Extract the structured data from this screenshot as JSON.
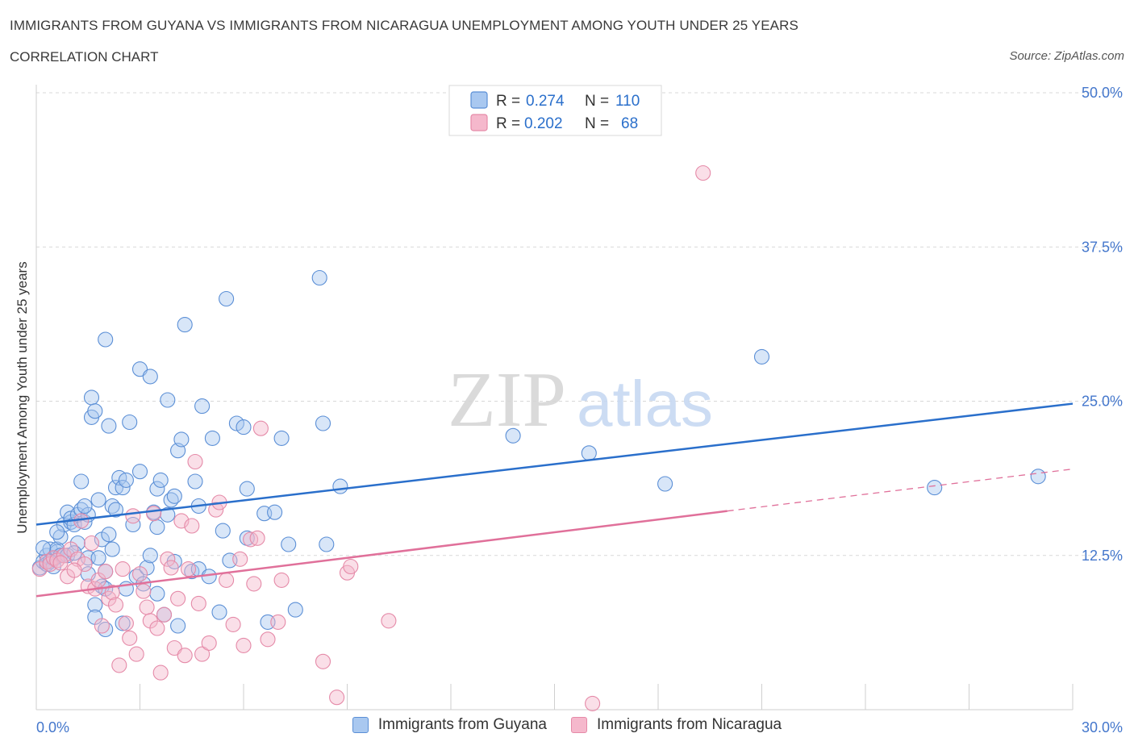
{
  "header": {
    "title": "IMMIGRANTS FROM GUYANA VS IMMIGRANTS FROM NICARAGUA UNEMPLOYMENT AMONG YOUTH UNDER 25 YEARS",
    "subtitle": "CORRELATION CHART",
    "source": "Source: ZipAtlas.com"
  },
  "watermark": {
    "zip": "ZIP",
    "atlas": "atlas"
  },
  "colors": {
    "guyana_fill": "#a9c8f0",
    "guyana_stroke": "#5b8fd6",
    "guyana_line": "#2a6fcb",
    "nicaragua_fill": "#f5b8cc",
    "nicaragua_stroke": "#e58aa8",
    "nicaragua_line": "#e0709a",
    "axis_label": "#4477cc",
    "grid": "#d8d8d8"
  },
  "legend": {
    "rows": [
      {
        "r_label": "R = ",
        "r_value": "0.274",
        "n_label": "N = ",
        "n_value": "110"
      },
      {
        "r_label": "R = ",
        "r_value": "0.202",
        "n_label": "N = ",
        "n_value": "68"
      }
    ]
  },
  "chart_data": {
    "type": "scatter",
    "xlabel": "",
    "ylabel": "Unemployment Among Youth under 25 years",
    "xlim": [
      0,
      30
    ],
    "ylim": [
      0,
      50
    ],
    "x_tick_labels": [
      "0.0%",
      "30.0%"
    ],
    "y_ticks": [
      12.5,
      25,
      37.5,
      50
    ],
    "y_tick_labels": [
      "12.5%",
      "25.0%",
      "37.5%",
      "50.0%"
    ],
    "grid": true,
    "legend_position": "top-center",
    "series": [
      {
        "name": "Immigrants from Guyana",
        "r": 0.274,
        "n": 110,
        "trend": {
          "x": [
            0,
            30
          ],
          "y": [
            15.0,
            24.8
          ]
        },
        "points": [
          [
            0.1,
            11.5
          ],
          [
            0.2,
            12.0
          ],
          [
            0.3,
            12.5
          ],
          [
            0.3,
            11.8
          ],
          [
            0.4,
            13.0
          ],
          [
            0.5,
            12.2
          ],
          [
            0.6,
            12.8
          ],
          [
            0.6,
            13.0
          ],
          [
            0.7,
            14.0
          ],
          [
            0.7,
            12.5
          ],
          [
            0.8,
            15.0
          ],
          [
            0.8,
            12.5
          ],
          [
            0.9,
            16.0
          ],
          [
            1.0,
            15.2
          ],
          [
            1.0,
            15.5
          ],
          [
            1.1,
            15.0
          ],
          [
            1.2,
            15.8
          ],
          [
            1.2,
            13.5
          ],
          [
            1.3,
            18.5
          ],
          [
            1.3,
            16.2
          ],
          [
            1.4,
            15.2
          ],
          [
            1.5,
            15.8
          ],
          [
            1.5,
            12.3
          ],
          [
            1.5,
            11.0
          ],
          [
            1.6,
            25.3
          ],
          [
            1.6,
            23.7
          ],
          [
            1.7,
            8.5
          ],
          [
            1.7,
            7.5
          ],
          [
            1.7,
            24.2
          ],
          [
            1.8,
            17.0
          ],
          [
            1.8,
            12.3
          ],
          [
            1.9,
            13.8
          ],
          [
            1.9,
            10.0
          ],
          [
            2.0,
            6.5
          ],
          [
            2.0,
            9.8
          ],
          [
            2.0,
            11.2
          ],
          [
            2.0,
            30.0
          ],
          [
            2.1,
            14.2
          ],
          [
            2.1,
            23.0
          ],
          [
            2.2,
            16.5
          ],
          [
            2.3,
            18.0
          ],
          [
            2.3,
            16.2
          ],
          [
            2.4,
            18.8
          ],
          [
            2.5,
            18.0
          ],
          [
            2.5,
            7.0
          ],
          [
            2.6,
            9.8
          ],
          [
            2.6,
            18.6
          ],
          [
            2.7,
            23.3
          ],
          [
            2.8,
            15.0
          ],
          [
            2.9,
            10.8
          ],
          [
            3.0,
            19.3
          ],
          [
            3.0,
            27.6
          ],
          [
            3.2,
            11.5
          ],
          [
            3.3,
            12.5
          ],
          [
            3.3,
            27.0
          ],
          [
            3.4,
            16.0
          ],
          [
            3.5,
            9.4
          ],
          [
            3.5,
            14.8
          ],
          [
            3.5,
            17.9
          ],
          [
            3.6,
            18.6
          ],
          [
            3.7,
            7.7
          ],
          [
            3.8,
            25.1
          ],
          [
            3.8,
            15.8
          ],
          [
            3.9,
            17.0
          ],
          [
            4.0,
            17.3
          ],
          [
            4.0,
            12.0
          ],
          [
            4.1,
            21.0
          ],
          [
            4.1,
            6.8
          ],
          [
            4.2,
            21.9
          ],
          [
            4.3,
            31.2
          ],
          [
            4.5,
            11.2
          ],
          [
            4.6,
            18.5
          ],
          [
            4.7,
            16.5
          ],
          [
            4.7,
            11.4
          ],
          [
            4.8,
            24.6
          ],
          [
            5.0,
            10.8
          ],
          [
            5.1,
            22.0
          ],
          [
            5.3,
            7.9
          ],
          [
            5.4,
            14.5
          ],
          [
            5.5,
            33.3
          ],
          [
            5.6,
            12.1
          ],
          [
            5.8,
            23.2
          ],
          [
            6.0,
            22.9
          ],
          [
            6.1,
            13.9
          ],
          [
            6.1,
            17.9
          ],
          [
            6.6,
            15.9
          ],
          [
            6.7,
            7.1
          ],
          [
            6.9,
            16.0
          ],
          [
            7.1,
            22.0
          ],
          [
            7.3,
            13.4
          ],
          [
            7.5,
            8.1
          ],
          [
            8.2,
            35.0
          ],
          [
            8.3,
            23.2
          ],
          [
            8.4,
            13.4
          ],
          [
            8.8,
            18.1
          ],
          [
            13.8,
            22.2
          ],
          [
            16.0,
            20.8
          ],
          [
            18.2,
            18.3
          ],
          [
            21.0,
            28.6
          ],
          [
            26.0,
            18.0
          ],
          [
            29.0,
            18.9
          ],
          [
            0.2,
            13.1
          ],
          [
            0.4,
            12.0
          ],
          [
            0.5,
            11.6
          ],
          [
            0.9,
            12.5
          ],
          [
            1.1,
            12.7
          ],
          [
            0.6,
            14.4
          ],
          [
            1.4,
            16.5
          ],
          [
            2.2,
            13.0
          ],
          [
            3.1,
            10.2
          ]
        ]
      },
      {
        "name": "Immigrants from Nicaragua",
        "r": 0.202,
        "n": 68,
        "trend": {
          "x": [
            0,
            20
          ],
          "y": [
            9.2,
            16.1
          ]
        },
        "trend_extension": {
          "x": [
            20,
            30
          ],
          "y": [
            16.1,
            19.5
          ]
        },
        "points": [
          [
            0.1,
            11.4
          ],
          [
            0.3,
            12.0
          ],
          [
            0.4,
            11.8
          ],
          [
            0.5,
            12.3
          ],
          [
            0.6,
            12.1
          ],
          [
            0.8,
            12.5
          ],
          [
            0.9,
            10.8
          ],
          [
            1.0,
            13.0
          ],
          [
            1.2,
            12.2
          ],
          [
            1.3,
            15.3
          ],
          [
            1.4,
            11.8
          ],
          [
            1.5,
            10.0
          ],
          [
            1.6,
            13.5
          ],
          [
            1.7,
            9.8
          ],
          [
            1.8,
            10.5
          ],
          [
            1.9,
            6.8
          ],
          [
            2.0,
            11.2
          ],
          [
            2.1,
            9.0
          ],
          [
            2.2,
            9.5
          ],
          [
            2.3,
            8.5
          ],
          [
            2.4,
            3.6
          ],
          [
            2.5,
            11.4
          ],
          [
            2.6,
            7.0
          ],
          [
            2.7,
            5.8
          ],
          [
            2.8,
            15.7
          ],
          [
            2.9,
            4.5
          ],
          [
            3.0,
            11.0
          ],
          [
            3.1,
            9.6
          ],
          [
            3.2,
            8.3
          ],
          [
            3.3,
            7.2
          ],
          [
            3.4,
            15.9
          ],
          [
            3.5,
            6.6
          ],
          [
            3.6,
            3.0
          ],
          [
            3.7,
            7.7
          ],
          [
            3.8,
            12.2
          ],
          [
            3.9,
            11.5
          ],
          [
            4.0,
            5.0
          ],
          [
            4.1,
            9.0
          ],
          [
            4.2,
            15.3
          ],
          [
            4.3,
            4.4
          ],
          [
            4.4,
            11.4
          ],
          [
            4.5,
            14.9
          ],
          [
            4.6,
            20.1
          ],
          [
            4.7,
            8.6
          ],
          [
            4.8,
            4.5
          ],
          [
            5.0,
            5.4
          ],
          [
            5.2,
            16.2
          ],
          [
            5.3,
            16.8
          ],
          [
            5.5,
            10.5
          ],
          [
            5.7,
            6.9
          ],
          [
            5.9,
            12.2
          ],
          [
            6.0,
            5.2
          ],
          [
            6.2,
            13.8
          ],
          [
            6.3,
            10.2
          ],
          [
            6.4,
            13.9
          ],
          [
            6.5,
            22.8
          ],
          [
            6.7,
            5.7
          ],
          [
            7.0,
            7.1
          ],
          [
            7.1,
            10.5
          ],
          [
            8.3,
            3.9
          ],
          [
            8.7,
            1.0
          ],
          [
            9.0,
            11.1
          ],
          [
            9.1,
            11.6
          ],
          [
            10.2,
            7.2
          ],
          [
            16.1,
            0.5
          ],
          [
            19.3,
            43.5
          ],
          [
            0.7,
            11.9
          ],
          [
            1.1,
            11.3
          ]
        ]
      }
    ]
  }
}
